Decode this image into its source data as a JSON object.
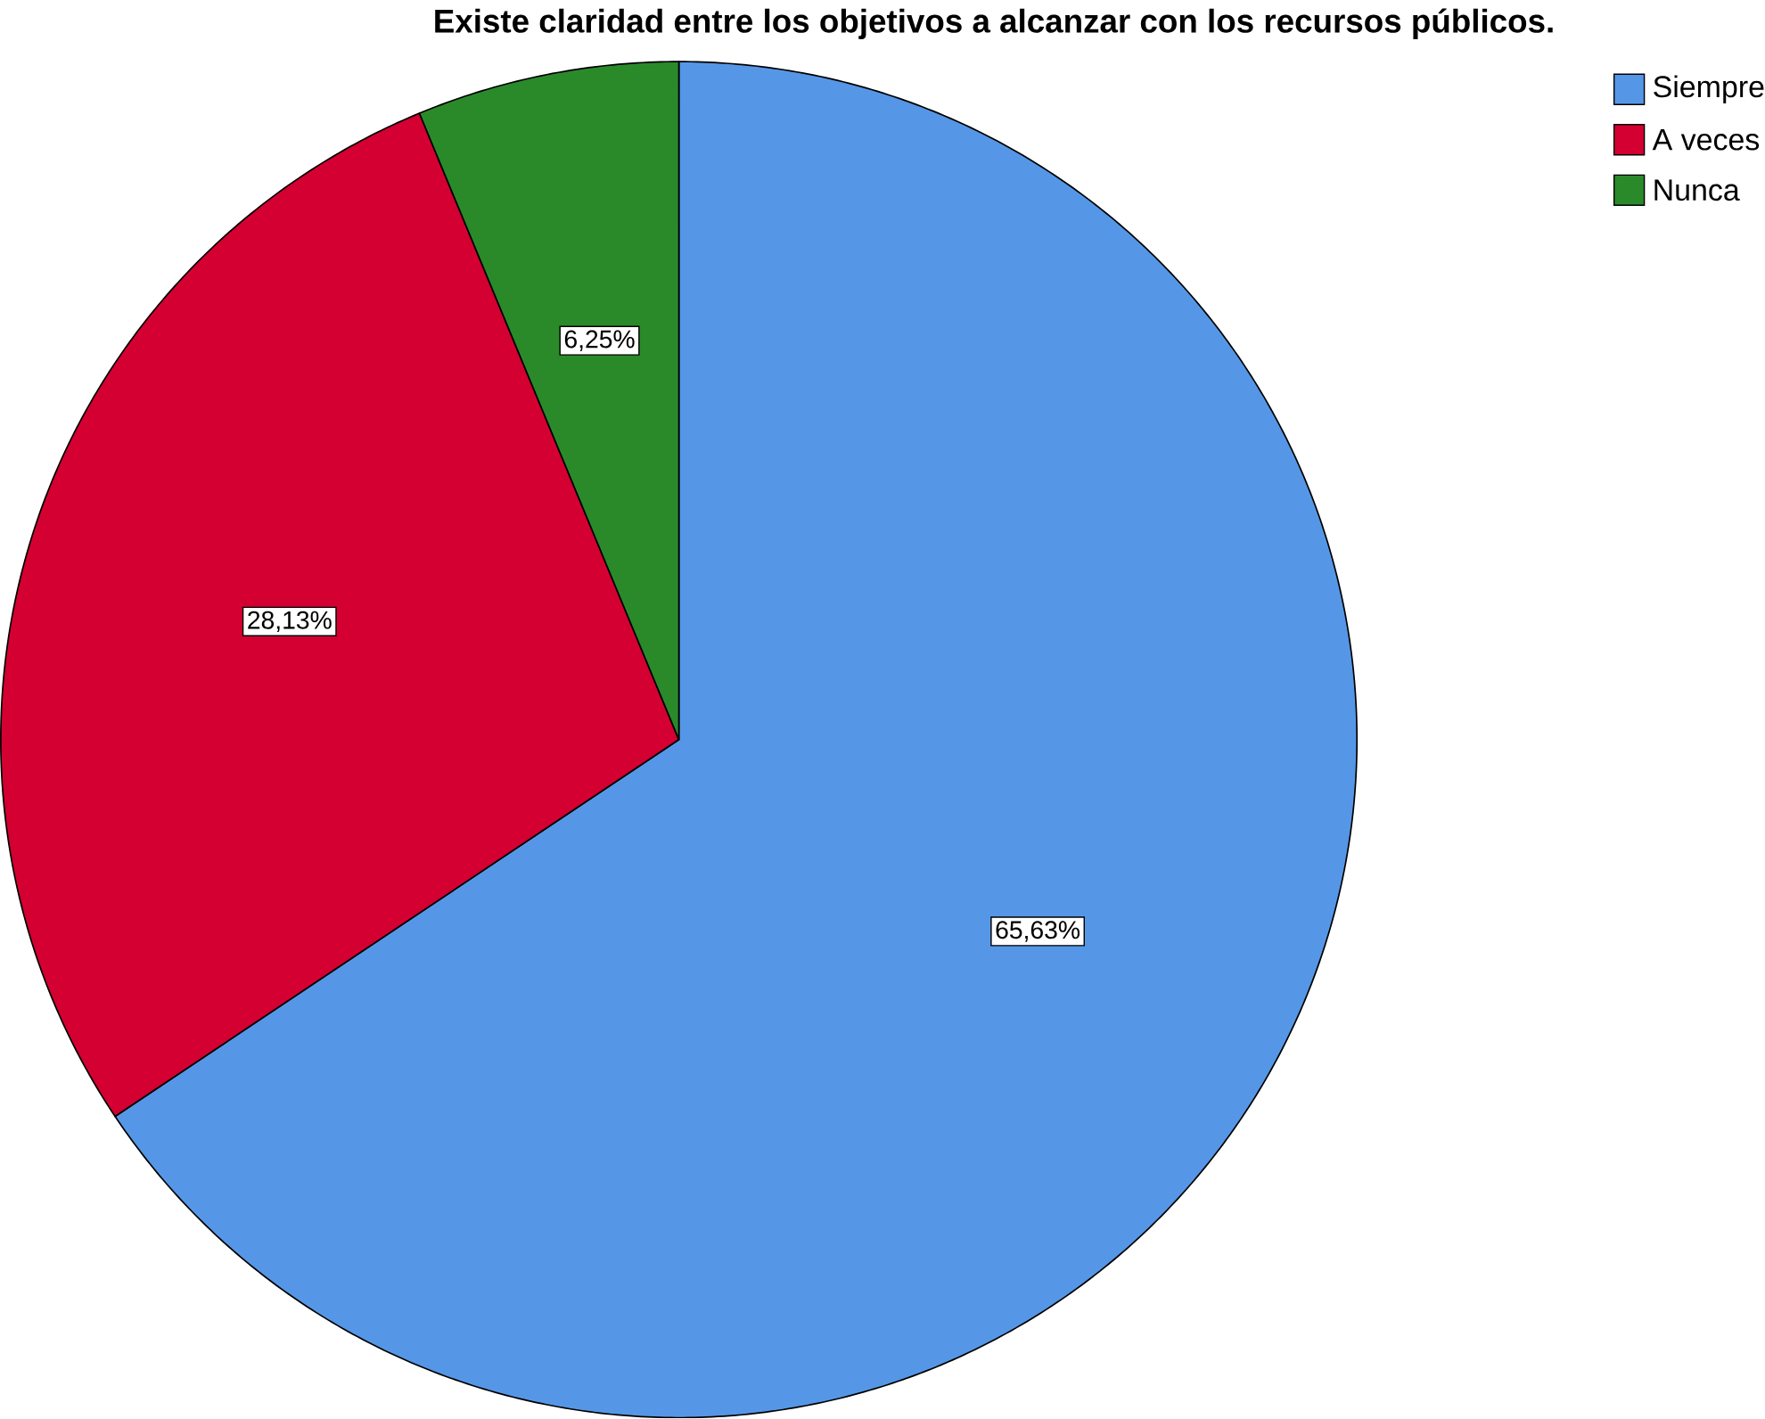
{
  "chart_data": {
    "type": "pie",
    "title": "Existe claridad entre los objetivos a alcanzar con los recursos públicos.",
    "categories": [
      "Siempre",
      "A veces",
      "Nunca"
    ],
    "values": [
      65.63,
      28.13,
      6.25
    ],
    "value_labels": [
      "65,63%",
      "28,13%",
      "6,25%"
    ],
    "colors": [
      "#5597e6",
      "#d40032",
      "#2a8a2a"
    ],
    "legend": "top right"
  }
}
